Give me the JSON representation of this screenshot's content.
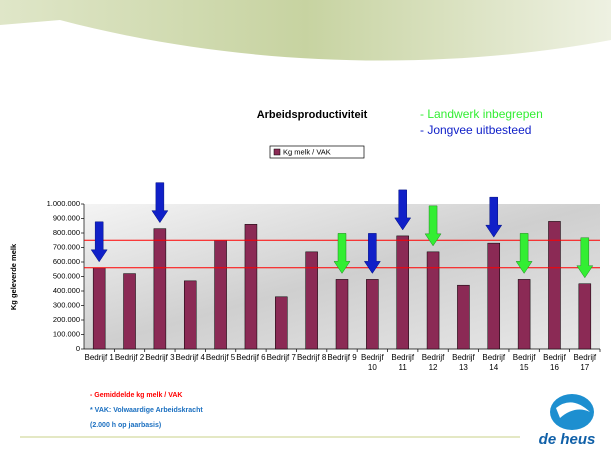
{
  "chart_data": {
    "type": "bar",
    "title": "Arbeidsproductiviteit",
    "y_label": "Kg geleverde melk",
    "series": [
      {
        "name": "Kg melk / VAK",
        "color": "#8b2a55",
        "values": [
          560000,
          520000,
          830000,
          470000,
          750000,
          860000,
          360000,
          670000,
          480000,
          480000,
          780000,
          670000,
          440000,
          730000,
          480000,
          880000,
          450000
        ]
      }
    ],
    "categories": [
      "Bedrijf 1",
      "Bedrijf 2",
      "Bedrijf 3",
      "Bedrijf 4",
      "Bedrijf 5",
      "Bedrijf 6",
      "Bedrijf 7",
      "Bedrijf 8",
      "Bedrijf 9",
      "Bedrijf 10",
      "Bedrijf 11",
      "Bedrijf 12",
      "Bedrijf 13",
      "Bedrijf 14",
      "Bedrijf 15",
      "Bedrijf 16",
      "Bedrijf 17"
    ],
    "ylim": [
      0,
      1000000
    ],
    "yticks": [
      0,
      {
        "value": 100000,
        "label": "100.000"
      },
      {
        "value": 200000,
        "label": "200.000"
      },
      {
        "value": 300000,
        "label": "300.000"
      },
      {
        "value": 400000,
        "label": "400.000"
      },
      {
        "value": 500000,
        "label": "500.000"
      },
      {
        "value": 600000,
        "label": "600.000"
      },
      {
        "value": 700000,
        "label": "700.000"
      },
      {
        "value": 800000,
        "label": "800.000"
      },
      {
        "value": 900000,
        "label": "900.000"
      },
      {
        "value": 1000000,
        "label": "1.000.000"
      }
    ],
    "reference_lines": {
      "label": "- Gemiddelde kg melk / VAK",
      "color": "#ff0000",
      "values": [
        750000,
        560000
      ]
    },
    "arrow_groups": [
      {
        "label": "- Landwerk inbegrepen",
        "color": "#33ee33",
        "bars": [
          9,
          12,
          15,
          17
        ]
      },
      {
        "label": "- Jongvee uitbesteed",
        "color": "#1020c8",
        "bars": [
          1,
          3,
          10,
          11,
          14
        ]
      }
    ],
    "notes": [
      "* VAK: Volwaardige Arbeidskracht",
      "(2.000 h op jaarbasis)"
    ],
    "logo": "de heus"
  }
}
